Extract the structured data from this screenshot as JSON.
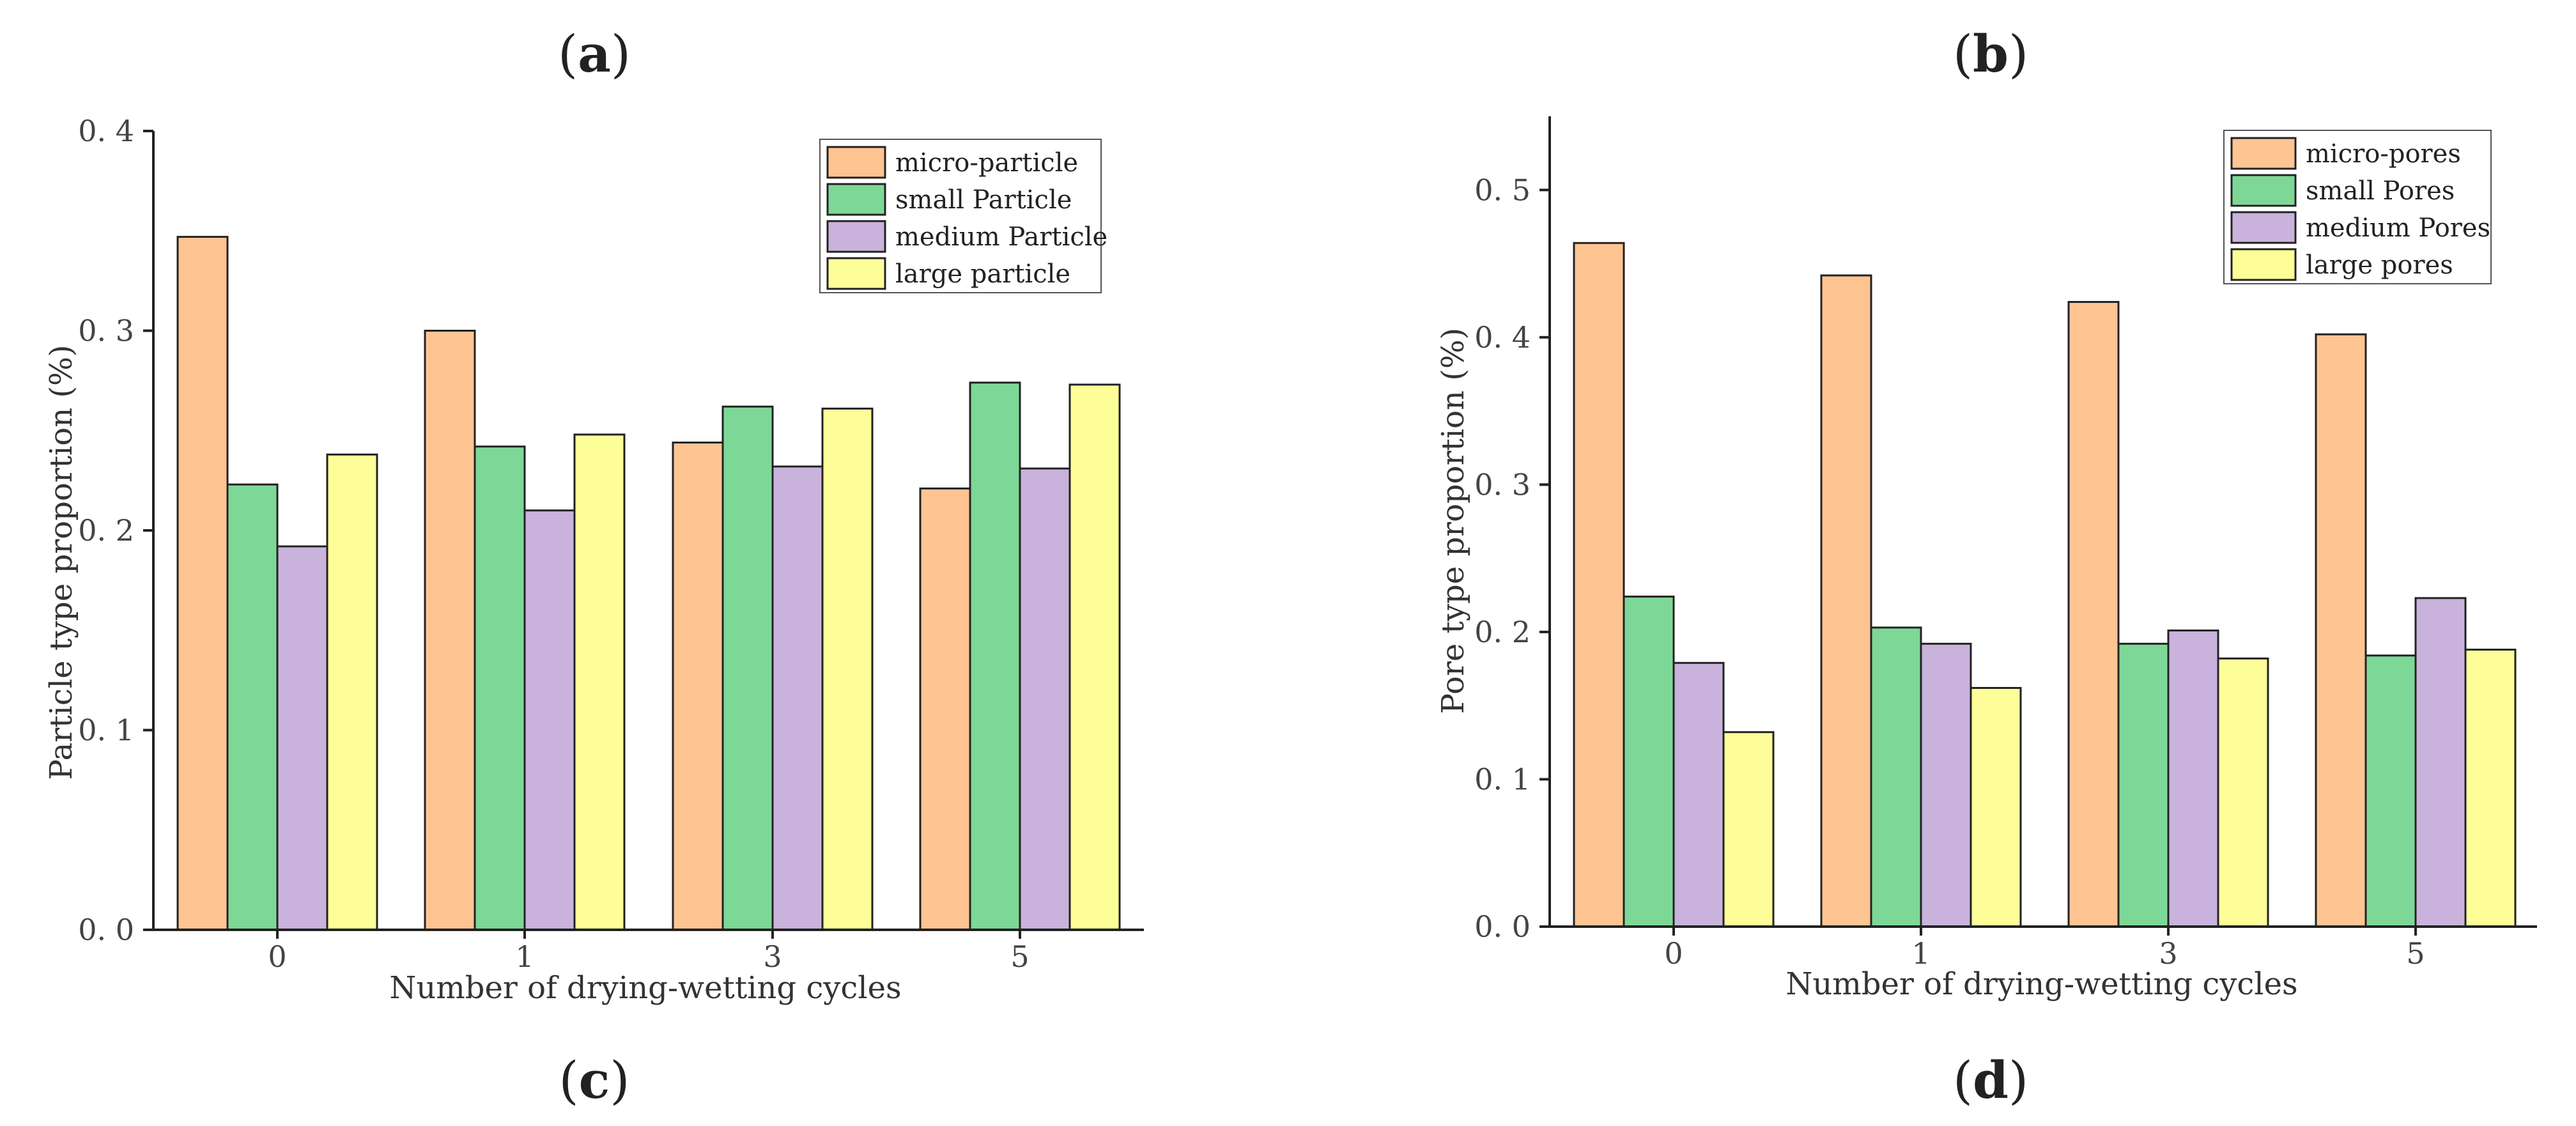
{
  "labels": {
    "a": {
      "open": "(",
      "letter": "a",
      "close": ")"
    },
    "b": {
      "open": "(",
      "letter": "b",
      "close": ")"
    },
    "c": {
      "open": "(",
      "letter": "c",
      "close": ")"
    },
    "d": {
      "open": "(",
      "letter": "d",
      "close": ")"
    }
  },
  "colors": {
    "orange": "#fec492",
    "green": "#7dd897",
    "purple": "#c9b3dc",
    "yellow": "#fefe99"
  },
  "chart_data": [
    {
      "type": "bar",
      "title": "",
      "xlabel": "Number of drying-wetting cycles",
      "ylabel": "Particle type proportion (%)",
      "categories": [
        "0",
        "1",
        "3",
        "5"
      ],
      "ylim": [
        0,
        0.4
      ],
      "yticks": [
        "0. 0",
        "0. 1",
        "0. 2",
        "0. 3",
        "0. 4"
      ],
      "legend_position": "top-right",
      "series": [
        {
          "name": "micro-particle",
          "color": "#fec492",
          "values": [
            0.347,
            0.3,
            0.244,
            0.221
          ]
        },
        {
          "name": "small Particle",
          "color": "#7dd897",
          "values": [
            0.223,
            0.242,
            0.262,
            0.274
          ]
        },
        {
          "name": "medium Particle",
          "color": "#c9b3dc",
          "values": [
            0.192,
            0.21,
            0.232,
            0.231
          ]
        },
        {
          "name": "large particle",
          "color": "#fefe99",
          "values": [
            0.238,
            0.248,
            0.261,
            0.273
          ]
        }
      ]
    },
    {
      "type": "bar",
      "title": "",
      "xlabel": "Number of drying-wetting cycles",
      "ylabel": "Pore type proportion (%)",
      "categories": [
        "0",
        "1",
        "3",
        "5"
      ],
      "ylim": [
        0,
        0.55
      ],
      "yticks": [
        "0. 0",
        "0. 1",
        "0. 2",
        "0. 3",
        "0. 4",
        "0. 5"
      ],
      "legend_position": "top-right",
      "series": [
        {
          "name": "micro-pores",
          "color": "#fec492",
          "values": [
            0.464,
            0.442,
            0.424,
            0.402
          ]
        },
        {
          "name": "small Pores",
          "color": "#7dd897",
          "values": [
            0.224,
            0.203,
            0.192,
            0.184
          ]
        },
        {
          "name": "medium Pores",
          "color": "#c9b3dc",
          "values": [
            0.179,
            0.192,
            0.201,
            0.223
          ]
        },
        {
          "name": "large pores",
          "color": "#fefe99",
          "values": [
            0.132,
            0.162,
            0.182,
            0.188
          ]
        }
      ]
    }
  ]
}
